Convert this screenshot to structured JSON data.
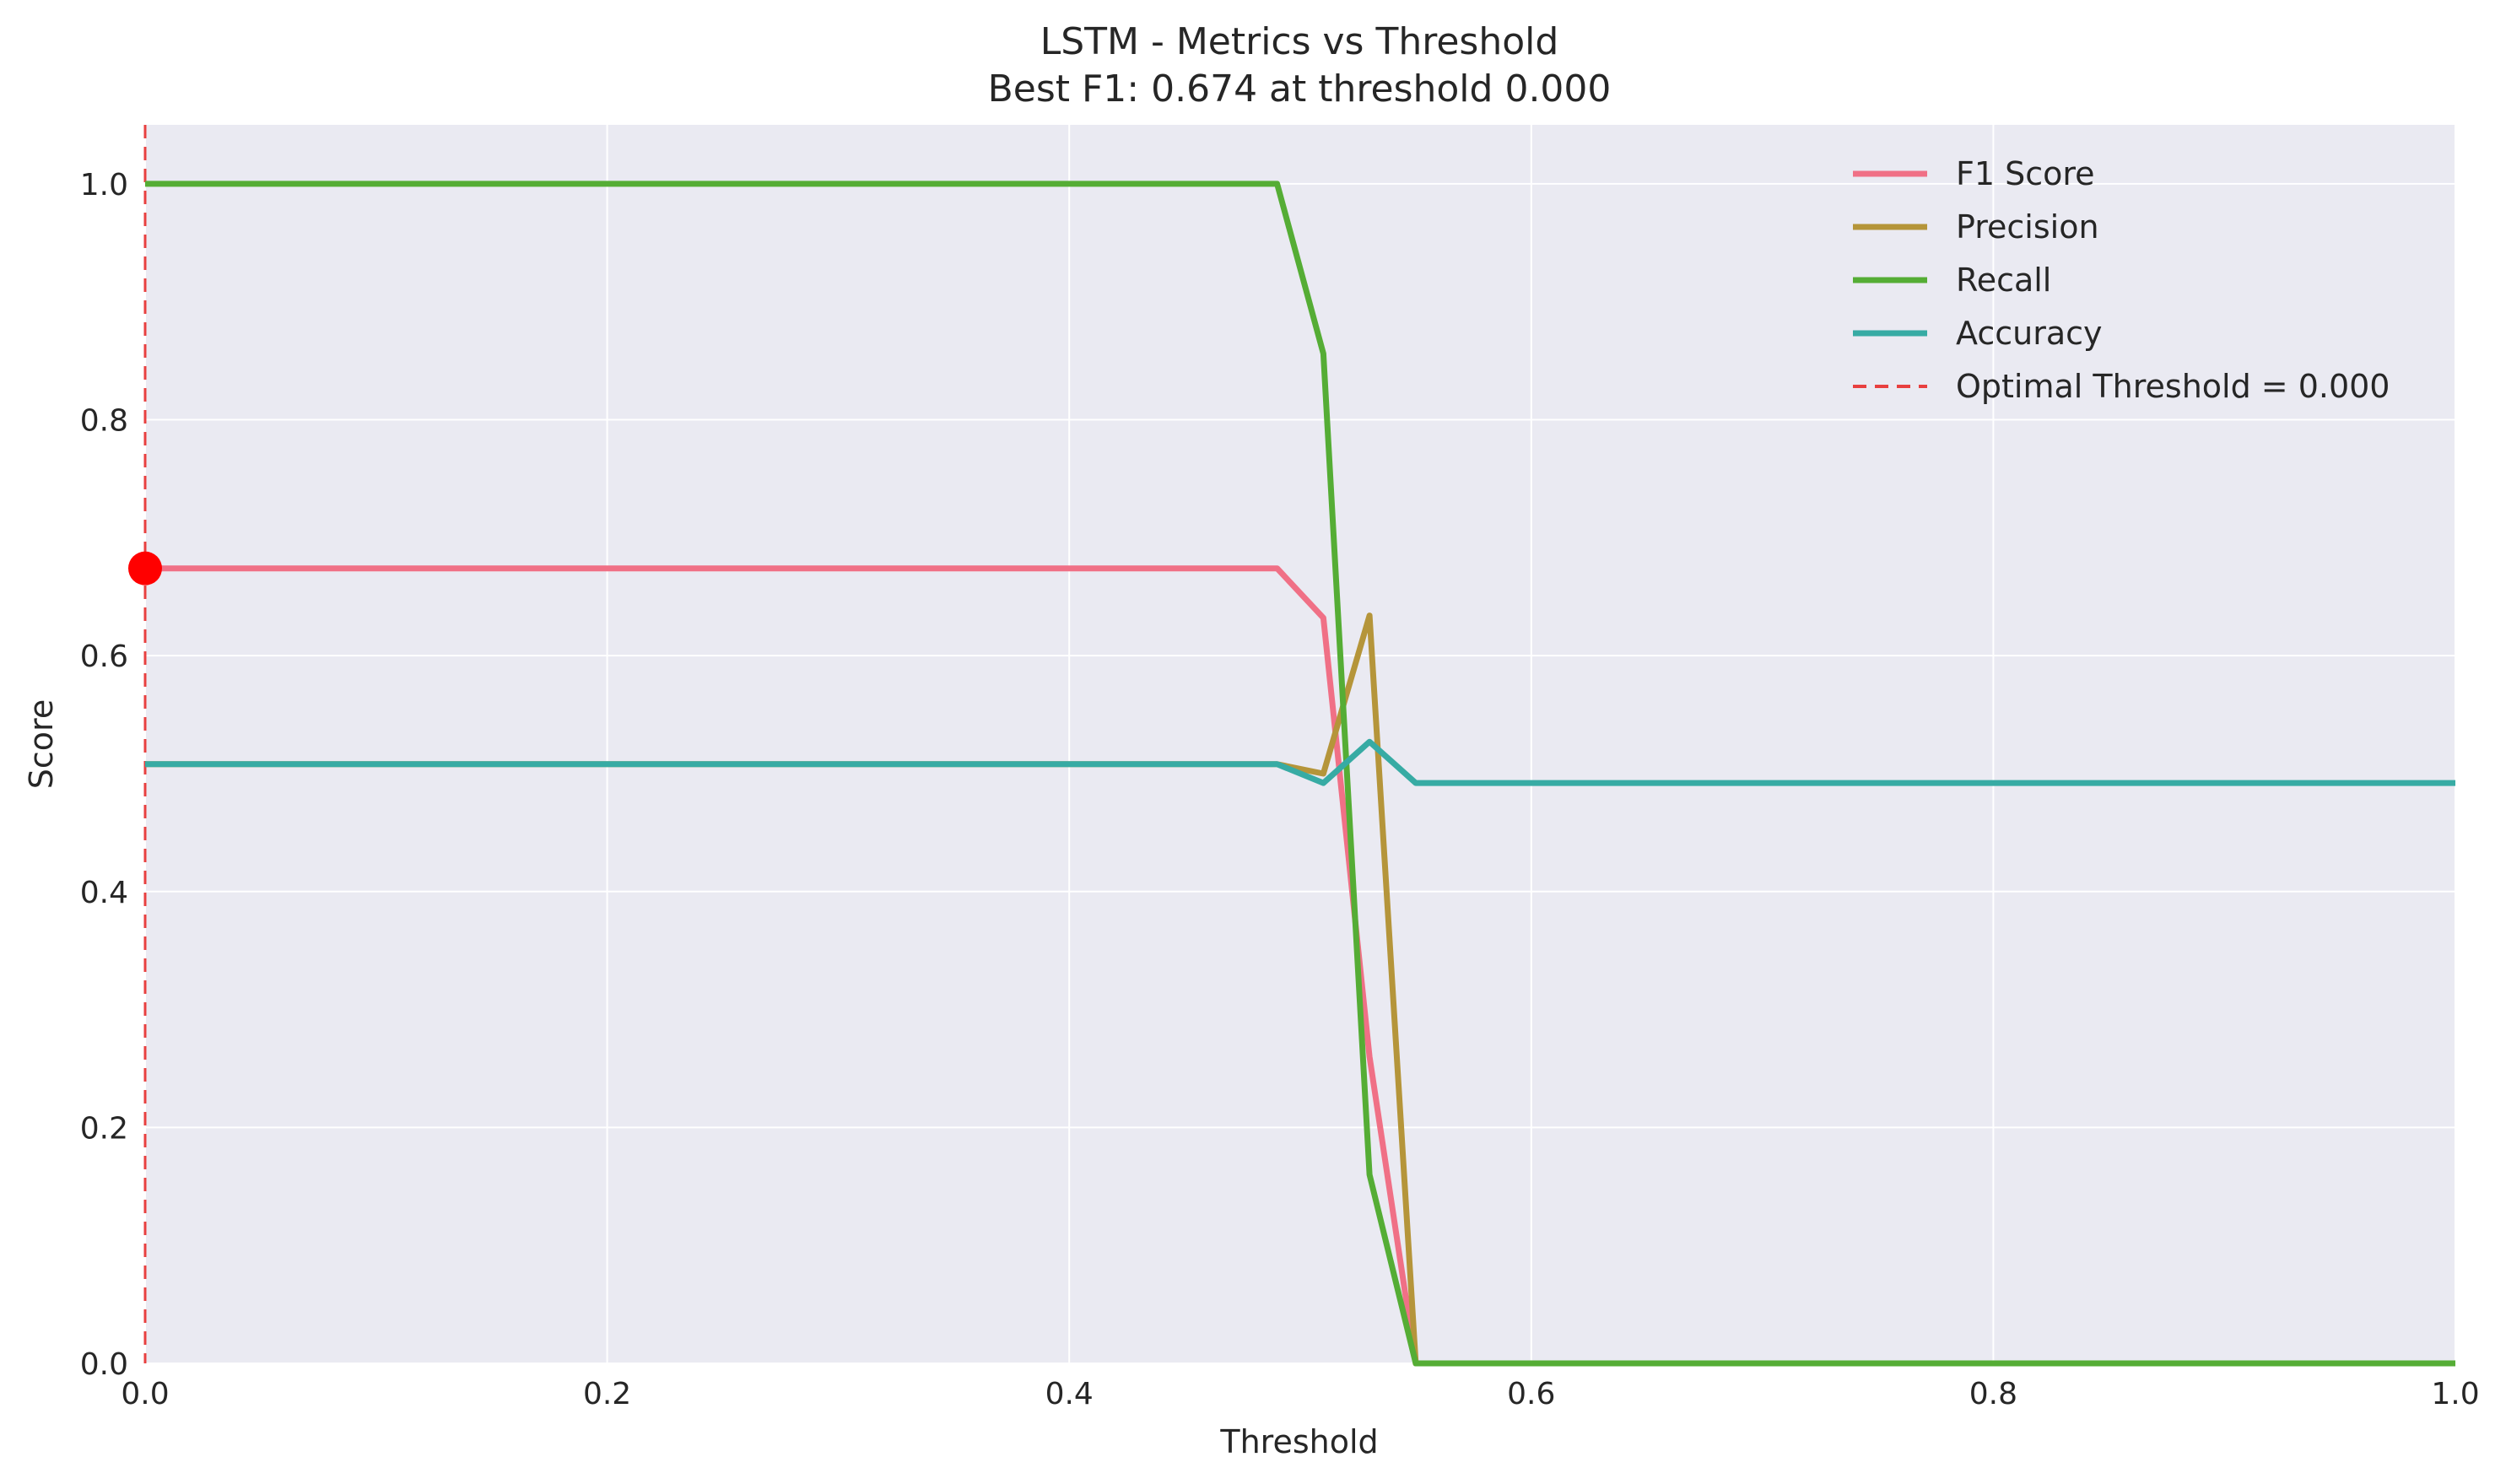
{
  "chart_data": {
    "type": "line",
    "title": "LSTM - Metrics vs Threshold",
    "subtitle": "Best F1: 0.674 at threshold 0.000",
    "xlabel": "Threshold",
    "ylabel": "Score",
    "xlim": [
      0.0,
      1.0
    ],
    "ylim": [
      0.0,
      1.05
    ],
    "xticks": [
      "0.0",
      "0.2",
      "0.4",
      "0.6",
      "0.8",
      "1.0"
    ],
    "yticks": [
      "0.0",
      "0.2",
      "0.4",
      "0.6",
      "0.8",
      "1.0"
    ],
    "grid": true,
    "legend_position": "top-right",
    "x": [
      0.0,
      0.49,
      0.51,
      0.53,
      0.55,
      1.0
    ],
    "series": [
      {
        "name": "F1 Score",
        "color": "#f07086",
        "values": [
          0.674,
          0.674,
          0.632,
          0.26,
          0.0,
          0.0
        ]
      },
      {
        "name": "Precision",
        "color": "#b5953a",
        "values": [
          0.508,
          0.508,
          0.5,
          0.634,
          0.0,
          0.0
        ]
      },
      {
        "name": "Recall",
        "color": "#55ad35",
        "values": [
          1.0,
          1.0,
          0.856,
          0.16,
          0.0,
          0.0
        ]
      },
      {
        "name": "Accuracy",
        "color": "#37aba4",
        "values": [
          0.508,
          0.508,
          0.492,
          0.527,
          0.492,
          0.492
        ]
      }
    ],
    "reference_line": {
      "name": "Optimal Threshold = 0.000",
      "x": 0.0,
      "color": "#e84040",
      "style": "dashed"
    },
    "marker": {
      "x": 0.0,
      "y": 0.674,
      "color": "#ff0000"
    }
  }
}
